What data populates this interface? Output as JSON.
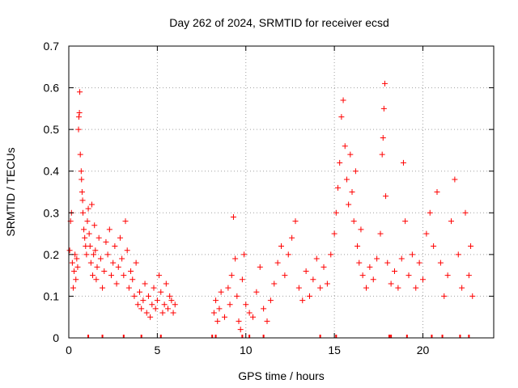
{
  "chart_data": {
    "type": "scatter",
    "title": "Day 262 of 2024, SRMTID for receiver ecsd",
    "xlabel": "GPS time / hours",
    "ylabel": "SRMTID / TECUs",
    "xlim": [
      0,
      24
    ],
    "ylim": [
      0,
      0.7
    ],
    "xticks": [
      0,
      5,
      10,
      15,
      20
    ],
    "yticks": [
      0,
      0.1,
      0.2,
      0.3,
      0.4,
      0.5,
      0.6,
      0.7
    ],
    "xtick_labels": [
      "0",
      "5",
      "10",
      "15",
      "20"
    ],
    "ytick_labels": [
      "0",
      "0.1",
      "0.2",
      "0.3",
      "0.4",
      "0.5",
      "0.6",
      "0.7"
    ],
    "grid": true,
    "marker": "plus",
    "series": [
      {
        "name": "SRMTID",
        "color": "#ff0000",
        "points": [
          [
            0.05,
            0.21
          ],
          [
            0.1,
            0.28
          ],
          [
            0.15,
            0.3
          ],
          [
            0.2,
            0.18
          ],
          [
            0.25,
            0.12
          ],
          [
            0.3,
            0.16
          ],
          [
            0.35,
            0.2
          ],
          [
            0.4,
            0.14
          ],
          [
            0.45,
            0.19
          ],
          [
            0.5,
            0.17
          ],
          [
            0.55,
            0.5
          ],
          [
            0.57,
            0.53
          ],
          [
            0.6,
            0.54
          ],
          [
            0.62,
            0.59
          ],
          [
            0.65,
            0.44
          ],
          [
            0.7,
            0.4
          ],
          [
            0.72,
            0.38
          ],
          [
            0.75,
            0.35
          ],
          [
            0.78,
            0.33
          ],
          [
            0.8,
            0.3
          ],
          [
            0.85,
            0.26
          ],
          [
            0.9,
            0.24
          ],
          [
            0.95,
            0.22
          ],
          [
            1.0,
            0.2
          ],
          [
            1.05,
            0.28
          ],
          [
            1.1,
            0.31
          ],
          [
            1.15,
            0.25
          ],
          [
            1.2,
            0.22
          ],
          [
            1.25,
            0.18
          ],
          [
            1.3,
            0.32
          ],
          [
            1.35,
            0.15
          ],
          [
            1.4,
            0.2
          ],
          [
            1.45,
            0.27
          ],
          [
            1.5,
            0.21
          ],
          [
            1.55,
            0.14
          ],
          [
            1.6,
            0.17
          ],
          [
            1.7,
            0.24
          ],
          [
            1.8,
            0.19
          ],
          [
            1.9,
            0.12
          ],
          [
            2.0,
            0.16
          ],
          [
            2.1,
            0.23
          ],
          [
            2.2,
            0.2
          ],
          [
            2.3,
            0.26
          ],
          [
            2.4,
            0.15
          ],
          [
            2.5,
            0.18
          ],
          [
            2.6,
            0.22
          ],
          [
            2.7,
            0.13
          ],
          [
            2.8,
            0.17
          ],
          [
            2.9,
            0.24
          ],
          [
            3.0,
            0.19
          ],
          [
            3.1,
            0.15
          ],
          [
            3.2,
            0.28
          ],
          [
            3.3,
            0.21
          ],
          [
            3.4,
            0.12
          ],
          [
            3.5,
            0.16
          ],
          [
            3.6,
            0.14
          ],
          [
            3.7,
            0.1
          ],
          [
            3.8,
            0.18
          ],
          [
            3.9,
            0.08
          ],
          [
            4.0,
            0.11
          ],
          [
            4.1,
            0.07
          ],
          [
            4.2,
            0.09
          ],
          [
            4.3,
            0.13
          ],
          [
            4.4,
            0.06
          ],
          [
            4.5,
            0.1
          ],
          [
            4.6,
            0.05
          ],
          [
            4.7,
            0.08
          ],
          [
            4.8,
            0.12
          ],
          [
            4.9,
            0.07
          ],
          [
            5.0,
            0.09
          ],
          [
            5.1,
            0.15
          ],
          [
            5.2,
            0.11
          ],
          [
            5.3,
            0.06
          ],
          [
            5.4,
            0.08
          ],
          [
            5.5,
            0.13
          ],
          [
            5.6,
            0.07
          ],
          [
            5.7,
            0.1
          ],
          [
            5.8,
            0.09
          ],
          [
            5.9,
            0.06
          ],
          [
            6.0,
            0.08
          ],
          [
            8.2,
            0.06
          ],
          [
            8.3,
            0.09
          ],
          [
            8.4,
            0.04
          ],
          [
            8.5,
            0.07
          ],
          [
            8.6,
            0.11
          ],
          [
            8.8,
            0.05
          ],
          [
            9.0,
            0.12
          ],
          [
            9.1,
            0.08
          ],
          [
            9.2,
            0.15
          ],
          [
            9.3,
            0.29
          ],
          [
            9.4,
            0.19
          ],
          [
            9.5,
            0.1
          ],
          [
            9.6,
            0.04
          ],
          [
            9.7,
            0.02
          ],
          [
            9.8,
            0.14
          ],
          [
            9.9,
            0.2
          ],
          [
            10.0,
            0.08
          ],
          [
            10.2,
            0.06
          ],
          [
            10.4,
            0.05
          ],
          [
            10.6,
            0.11
          ],
          [
            10.8,
            0.17
          ],
          [
            11.0,
            0.07
          ],
          [
            11.2,
            0.04
          ],
          [
            11.4,
            0.09
          ],
          [
            11.6,
            0.13
          ],
          [
            11.8,
            0.18
          ],
          [
            12.0,
            0.22
          ],
          [
            12.2,
            0.15
          ],
          [
            12.4,
            0.2
          ],
          [
            12.6,
            0.24
          ],
          [
            12.8,
            0.28
          ],
          [
            13.0,
            0.12
          ],
          [
            13.2,
            0.09
          ],
          [
            13.4,
            0.16
          ],
          [
            13.6,
            0.1
          ],
          [
            13.8,
            0.14
          ],
          [
            14.0,
            0.19
          ],
          [
            14.2,
            0.12
          ],
          [
            14.4,
            0.17
          ],
          [
            14.6,
            0.13
          ],
          [
            14.8,
            0.2
          ],
          [
            15.0,
            0.25
          ],
          [
            15.1,
            0.3
          ],
          [
            15.2,
            0.36
          ],
          [
            15.3,
            0.42
          ],
          [
            15.4,
            0.53
          ],
          [
            15.5,
            0.57
          ],
          [
            15.6,
            0.46
          ],
          [
            15.7,
            0.38
          ],
          [
            15.8,
            0.32
          ],
          [
            15.9,
            0.44
          ],
          [
            16.0,
            0.35
          ],
          [
            16.1,
            0.28
          ],
          [
            16.2,
            0.4
          ],
          [
            16.3,
            0.22
          ],
          [
            16.4,
            0.18
          ],
          [
            16.5,
            0.26
          ],
          [
            16.6,
            0.15
          ],
          [
            16.8,
            0.12
          ],
          [
            17.0,
            0.17
          ],
          [
            17.2,
            0.14
          ],
          [
            17.4,
            0.19
          ],
          [
            17.6,
            0.25
          ],
          [
            17.7,
            0.44
          ],
          [
            17.75,
            0.48
          ],
          [
            17.8,
            0.55
          ],
          [
            17.85,
            0.61
          ],
          [
            17.9,
            0.34
          ],
          [
            18.0,
            0.18
          ],
          [
            18.2,
            0.13
          ],
          [
            18.4,
            0.16
          ],
          [
            18.6,
            0.12
          ],
          [
            18.8,
            0.19
          ],
          [
            18.9,
            0.42
          ],
          [
            19.0,
            0.28
          ],
          [
            19.2,
            0.15
          ],
          [
            19.4,
            0.2
          ],
          [
            19.6,
            0.12
          ],
          [
            19.8,
            0.18
          ],
          [
            20.0,
            0.14
          ],
          [
            20.2,
            0.25
          ],
          [
            20.4,
            0.3
          ],
          [
            20.6,
            0.22
          ],
          [
            20.8,
            0.35
          ],
          [
            21.0,
            0.18
          ],
          [
            21.2,
            0.1
          ],
          [
            21.4,
            0.15
          ],
          [
            21.6,
            0.28
          ],
          [
            21.8,
            0.38
          ],
          [
            22.0,
            0.2
          ],
          [
            22.2,
            0.12
          ],
          [
            22.4,
            0.3
          ],
          [
            22.6,
            0.15
          ],
          [
            22.7,
            0.22
          ],
          [
            22.8,
            0.1
          ]
        ]
      }
    ],
    "rug_points_x": [
      1.1,
      1.9,
      3.1,
      4.1,
      5.2,
      8.1,
      8.3,
      9.8,
      10.2,
      11.0,
      14.2,
      15.1,
      18.1,
      18.2,
      19.1,
      20.5,
      21.1,
      22.1,
      22.6
    ]
  }
}
